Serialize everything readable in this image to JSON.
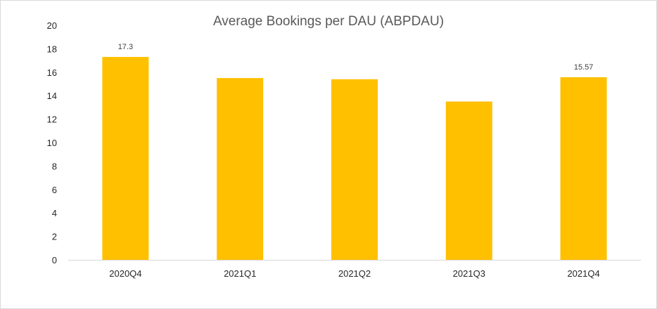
{
  "chart_data": {
    "type": "bar",
    "title": "Average Bookings per DAU (ABPDAU)",
    "categories": [
      "2020Q4",
      "2021Q1",
      "2021Q2",
      "2021Q3",
      "2021Q4"
    ],
    "values": [
      17.3,
      15.5,
      15.4,
      13.5,
      15.57
    ],
    "data_labels": [
      "17.3",
      "",
      "",
      "",
      "15.57"
    ],
    "ylim": [
      0,
      20
    ],
    "y_ticks": [
      0,
      2,
      4,
      6,
      8,
      10,
      12,
      14,
      16,
      18,
      20
    ],
    "grid": false,
    "legend": "none",
    "bar_color": "#FFC000",
    "xlabel": "",
    "ylabel": ""
  }
}
